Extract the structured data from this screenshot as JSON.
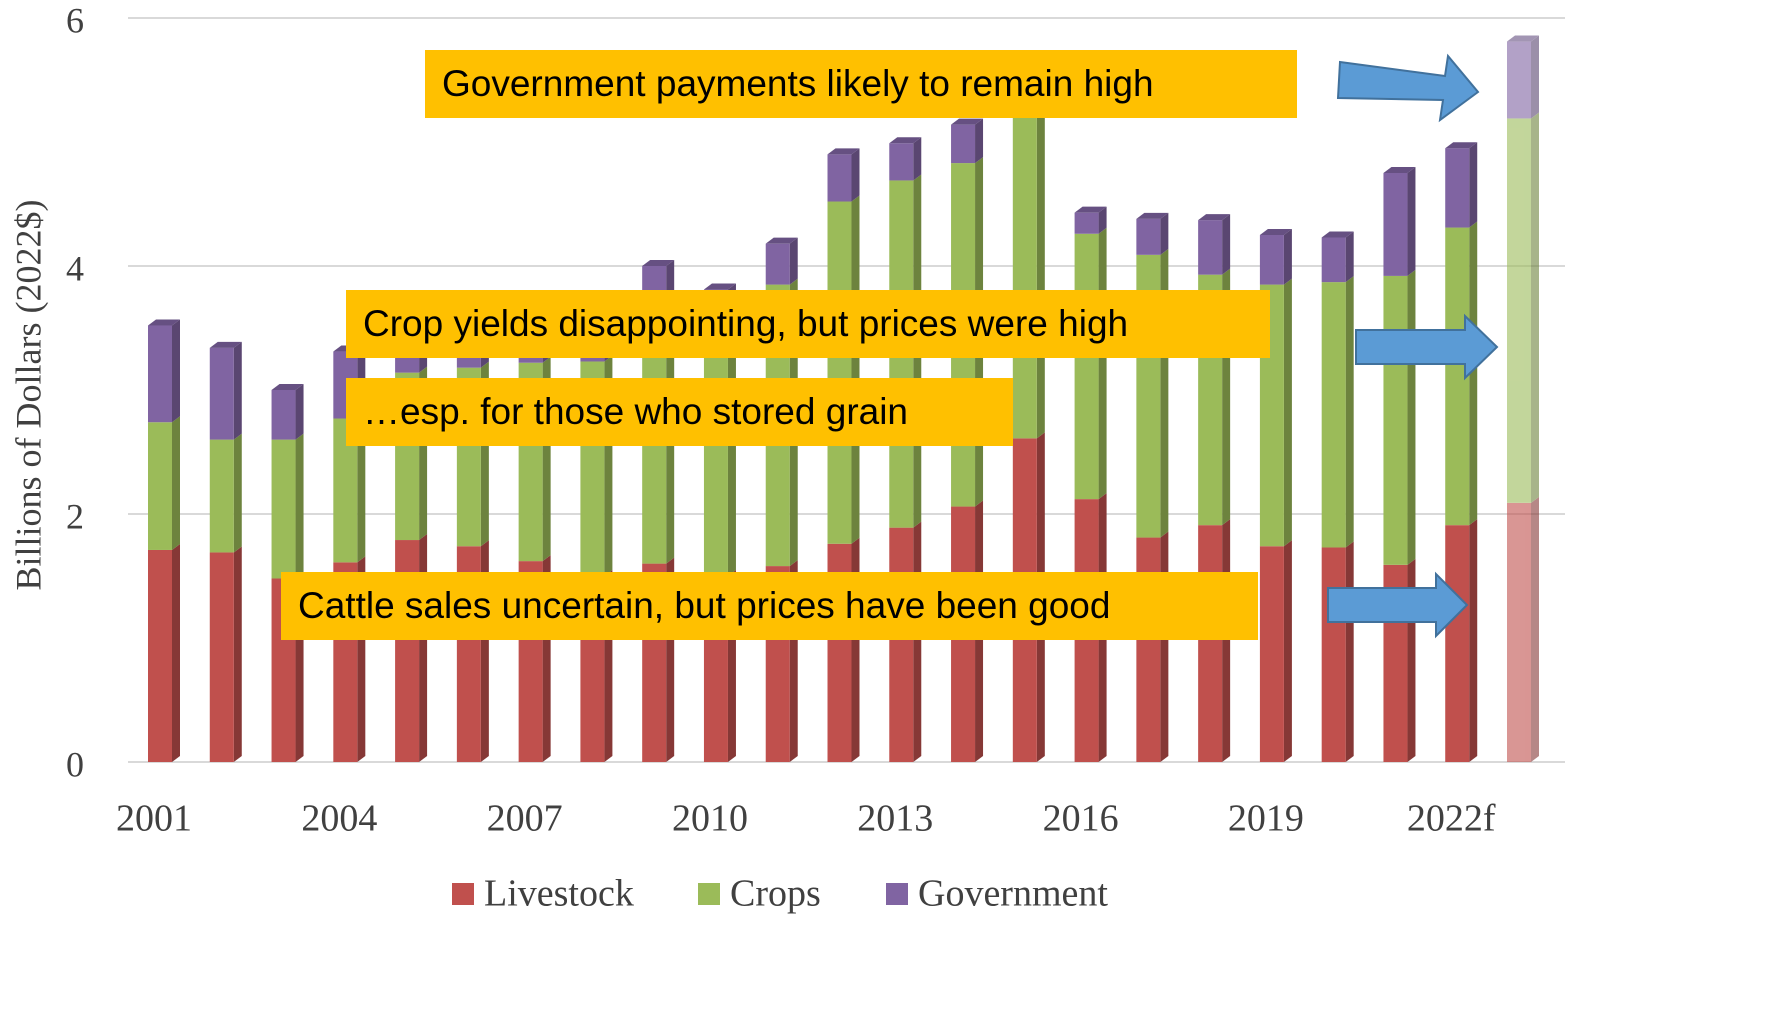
{
  "chart_data": {
    "type": "stacked_bar",
    "y_label": "Billions of Dollars (2022$)",
    "categories": [
      "2001",
      null,
      null,
      "2004",
      null,
      null,
      "2007",
      null,
      null,
      "2010",
      null,
      null,
      "2013",
      null,
      null,
      "2016",
      null,
      null,
      "2019",
      null,
      null,
      "2022f",
      null
    ],
    "series": [
      {
        "name": "Livestock",
        "color": "#c0504d",
        "values": [
          1.71,
          1.69,
          1.48,
          1.61,
          1.79,
          1.74,
          1.62,
          1.5,
          1.6,
          1.5,
          1.58,
          1.76,
          1.89,
          2.06,
          2.61,
          2.12,
          1.81,
          1.91,
          1.74,
          1.73,
          1.59,
          1.91,
          2.09
        ]
      },
      {
        "name": "Crops",
        "color": "#9bbb59",
        "values": [
          1.03,
          0.91,
          1.12,
          1.16,
          1.35,
          1.44,
          1.6,
          1.73,
          2.1,
          2.2,
          2.27,
          2.76,
          2.8,
          2.77,
          2.64,
          2.14,
          2.28,
          2.02,
          2.11,
          2.14,
          2.33,
          2.4,
          3.1
        ]
      },
      {
        "name": "Government",
        "color": "#8064a2",
        "values": [
          0.78,
          0.74,
          0.4,
          0.54,
          0.2,
          0.22,
          0.25,
          0.1,
          0.3,
          0.11,
          0.33,
          0.38,
          0.3,
          0.31,
          0.35,
          0.17,
          0.29,
          0.44,
          0.4,
          0.36,
          0.83,
          0.64,
          0.62
        ]
      }
    ],
    "opacity": [
      1,
      1,
      1,
      1,
      1,
      1,
      1,
      1,
      1,
      1,
      1,
      1,
      1,
      1,
      1,
      1,
      1,
      1,
      1,
      1,
      1,
      1,
      0.6
    ],
    "ylim": [
      0,
      6
    ],
    "yticks": [
      0,
      2,
      4,
      6
    ],
    "grid": true,
    "legend": "bottom",
    "annotations": [
      "Government payments likely to remain high",
      "Crop yields disappointing, but prices were high",
      "…esp. for those who stored grain",
      "Cattle sales uncertain, but prices have been good"
    ]
  }
}
